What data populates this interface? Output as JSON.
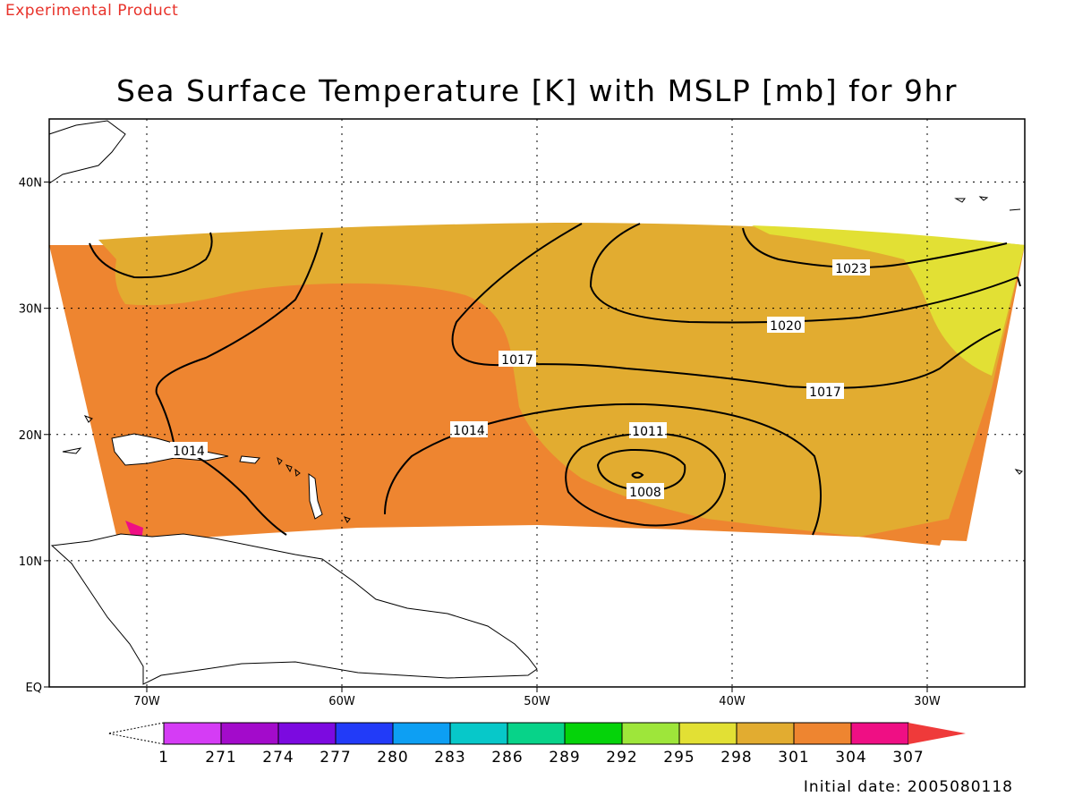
{
  "banner": "Experimental Product",
  "title": "Sea Surface Temperature [K] with MSLP [mb] for 9hr",
  "initial_date": "Initial date: 2005080118",
  "map": {
    "lon_range": [
      -75,
      -25
    ],
    "lat_range": [
      0,
      45
    ],
    "grid": true,
    "lon_ticks": [
      {
        "value": -70,
        "label": "70W"
      },
      {
        "value": -60,
        "label": "60W"
      },
      {
        "value": -50,
        "label": "50W"
      },
      {
        "value": -40,
        "label": "40W"
      },
      {
        "value": -30,
        "label": "30W"
      }
    ],
    "lat_ticks": [
      {
        "value": 0,
        "label": "EQ"
      },
      {
        "value": 10,
        "label": "10N"
      },
      {
        "value": 20,
        "label": "20N"
      },
      {
        "value": 30,
        "label": "30N"
      },
      {
        "value": 40,
        "label": "40N"
      }
    ],
    "contours": [
      {
        "value": 1023,
        "label": "1023"
      },
      {
        "value": 1020,
        "label": "1020"
      },
      {
        "value": 1017,
        "label": "1017"
      },
      {
        "value": 1017,
        "label": "1017"
      },
      {
        "value": 1014,
        "label": "1014"
      },
      {
        "value": 1014,
        "label": "1014"
      },
      {
        "value": 1011,
        "label": "1011"
      },
      {
        "value": 1008,
        "label": "1008"
      }
    ],
    "fill_colors": {
      "sst_298": "#e2e034",
      "sst_301": "#e2ac30",
      "sst_304": "#ee8530",
      "sst_307": "#ef0f84"
    }
  },
  "colorbar": {
    "labels": [
      "1",
      "271",
      "274",
      "277",
      "280",
      "283",
      "286",
      "289",
      "292",
      "295",
      "298",
      "301",
      "304",
      "307"
    ],
    "colors": [
      "#d53cf5",
      "#a30bcb",
      "#7c0ae0",
      "#223bf8",
      "#0d9ff3",
      "#07c8c9",
      "#07d389",
      "#05d30a",
      "#9ee63a",
      "#e2e034",
      "#e2ac30",
      "#ee8530",
      "#ef0f84"
    ],
    "over_color": "#ef3a3a"
  }
}
